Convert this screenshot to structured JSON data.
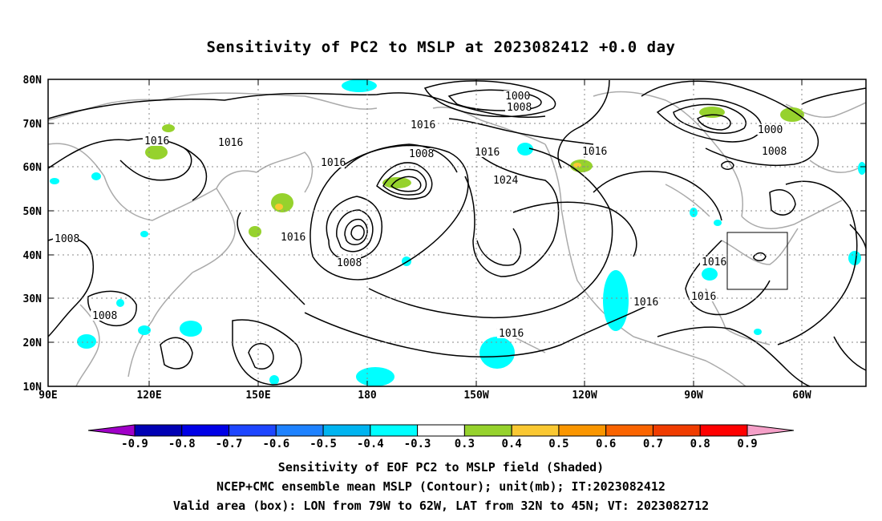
{
  "title": "Sensitivity of PC2 to MSLP at 2023082412 +0.0 day",
  "lat_labels": [
    "80N",
    "70N",
    "60N",
    "50N",
    "40N",
    "30N",
    "20N",
    "10N"
  ],
  "lon_labels": [
    "90E",
    "120E",
    "150E",
    "180",
    "150W",
    "120W",
    "90W",
    "60W"
  ],
  "contour_labels": [
    {
      "text": "1000"
    },
    {
      "text": "1008"
    },
    {
      "text": "1016"
    },
    {
      "text": "1016"
    },
    {
      "text": "1016"
    },
    {
      "text": "1008"
    },
    {
      "text": "1016"
    },
    {
      "text": "1024"
    },
    {
      "text": "1016"
    },
    {
      "text": "1000"
    },
    {
      "text": "1008"
    },
    {
      "text": "1016"
    },
    {
      "text": "1008"
    },
    {
      "text": "1008"
    },
    {
      "text": "1016"
    },
    {
      "text": "1016"
    },
    {
      "text": "1016"
    },
    {
      "text": "1016"
    },
    {
      "text": "1016"
    },
    {
      "text": "1008"
    }
  ],
  "colorbar": {
    "labels": [
      "-0.9",
      "-0.8",
      "-0.7",
      "-0.6",
      "-0.5",
      "-0.4",
      "-0.3",
      "0.3",
      "0.4",
      "0.5",
      "0.6",
      "0.7",
      "0.8",
      "0.9"
    ],
    "colors": [
      "#a000c8",
      "#0000b4",
      "#0000e6",
      "#1e46ff",
      "#1e82ff",
      "#00b4f0",
      "#00ffff",
      "#ffffff",
      "#96d22d",
      "#fac832",
      "#fa9600",
      "#fa6400",
      "#f03c00",
      "#ff0000",
      "#f5a0c8"
    ]
  },
  "footer": [
    "Sensitivity of EOF PC2 to MSLP field (Shaded)",
    "NCEP+CMC ensemble mean MSLP (Contour); unit(mb); IT:2023082412",
    "Valid area (box): LON from 79W to 62W, LAT from 32N to 45N; VT: 2023082712"
  ]
}
